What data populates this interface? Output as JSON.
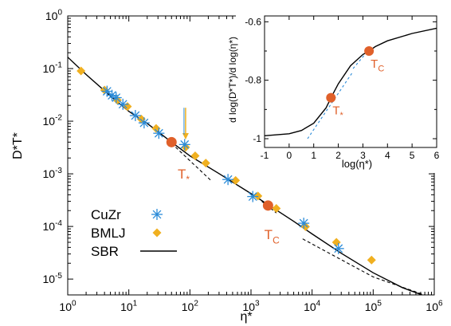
{
  "chart_data": [
    {
      "type": "scatter",
      "xscale": "log",
      "yscale": "log",
      "xlim": [
        1,
        1000000
      ],
      "ylim": [
        5e-06,
        1
      ],
      "xlabel": "η*",
      "ylabel": "D*T*",
      "x_ticks": [
        "10^0",
        "10^1",
        "10^2",
        "10^3",
        "10^4",
        "10^5",
        "10^6"
      ],
      "y_ticks": [
        "10^-5",
        "10^-4",
        "10^-3",
        "10^-2",
        "10^-1",
        "10^0"
      ],
      "legend_position": "bottom-left",
      "colors": {
        "CuZr": "#2b8bd8",
        "BMLJ": "#f0b020",
        "SBR": "#000000",
        "markers": "#e0602a",
        "arrow": "#f0b020"
      },
      "series": [
        {
          "name": "CuZr",
          "marker": "asterisk",
          "points": [
            [
              4.4,
              0.037
            ],
            [
              5.3,
              0.031
            ],
            [
              6.2,
              0.028
            ],
            [
              8.0,
              0.021
            ],
            [
              12.8,
              0.0128
            ],
            [
              17.8,
              0.0093
            ],
            [
              31,
              0.0059
            ],
            [
              82,
              0.0036
            ],
            [
              420,
              0.00078
            ],
            [
              1070,
              0.00037
            ],
            [
              7300,
              0.000115
            ],
            [
              27000,
              3.8e-05
            ]
          ]
        },
        {
          "name": "BMLJ",
          "marker": "diamond",
          "points": [
            [
              1.65,
              0.09
            ],
            [
              4.0,
              0.039
            ],
            [
              6.5,
              0.025
            ],
            [
              9.5,
              0.019
            ],
            [
              16,
              0.011
            ],
            [
              28,
              0.0073
            ],
            [
              85,
              0.0032
            ],
            [
              122,
              0.0022
            ],
            [
              182,
              0.0016
            ],
            [
              560,
              0.00075
            ],
            [
              1300,
              0.00038
            ],
            [
              2600,
              0.00022
            ],
            [
              7800,
              9.9e-05
            ],
            [
              25000,
              5e-05
            ],
            [
              94000,
              2.3e-05
            ]
          ]
        },
        {
          "name": "SBR",
          "line": "solid",
          "points": [
            [
              1,
              0.165
            ],
            [
              2,
              0.077
            ],
            [
              5,
              0.03
            ],
            [
              10,
              0.0154
            ],
            [
              20,
              0.0091
            ],
            [
              50,
              0.004
            ],
            [
              100,
              0.0022
            ],
            [
              300,
              0.00101
            ],
            [
              1000,
              0.00042
            ],
            [
              2000,
              0.00025
            ],
            [
              5000,
              0.000125
            ],
            [
              10000,
              7.2e-05
            ],
            [
              30000,
              3.1e-05
            ],
            [
              100000,
              1.32e-05
            ],
            [
              300000,
              6.9e-06
            ],
            [
              1000000,
              4.1e-06
            ]
          ]
        },
        {
          "name": "",
          "line": "dashed",
          "points": [
            [
              50,
              0.0038
            ],
            [
              110,
              0.0016
            ],
            [
              220,
              0.00075
            ]
          ]
        },
        {
          "name": "",
          "line": "dashed",
          "points": [
            [
              1500,
              0.0003
            ],
            [
              2600,
              0.00018
            ]
          ]
        },
        {
          "name": "",
          "line": "dashed",
          "points": [
            [
              7000,
              5.8e-05
            ],
            [
              100000,
              1.1e-05
            ],
            [
              1000000,
              4.3e-06
            ]
          ]
        }
      ],
      "annotations": [
        {
          "text": "T*",
          "at": [
            50,
            0.004
          ],
          "label_at": [
            63,
            0.00082
          ]
        },
        {
          "text": "Tc",
          "at": [
            1900,
            0.00025
          ],
          "label_at": [
            1650,
            5.7e-05
          ]
        },
        {
          "type": "arrow",
          "x": 85,
          "y_from": 0.018,
          "y_to": 0.0045
        }
      ]
    },
    {
      "type": "line",
      "xlim": [
        -1,
        6
      ],
      "ylim": [
        -1.03,
        -0.58
      ],
      "xlabel": "log(η*)",
      "ylabel": "d log(D*T*)/d log(η*)",
      "x_ticks": [
        "-1",
        "0",
        "1",
        "2",
        "3",
        "4",
        "5",
        "6"
      ],
      "y_ticks": [
        "-1",
        "-0.8",
        "-0.6"
      ],
      "series": [
        {
          "name": "",
          "line": "solid",
          "color": "#000000",
          "points": [
            [
              -1,
              -0.99
            ],
            [
              0,
              -0.983
            ],
            [
              0.5,
              -0.972
            ],
            [
              1.0,
              -0.947
            ],
            [
              1.5,
              -0.895
            ],
            [
              1.75,
              -0.852
            ],
            [
              2.0,
              -0.812
            ],
            [
              2.5,
              -0.75
            ],
            [
              3.0,
              -0.712
            ],
            [
              3.25,
              -0.7
            ],
            [
              3.5,
              -0.685
            ],
            [
              4,
              -0.665
            ],
            [
              5,
              -0.64
            ],
            [
              6,
              -0.622
            ]
          ]
        },
        {
          "name": "",
          "line": "dashed",
          "color": "#2b8bd8",
          "points": [
            [
              0.75,
              -1.0
            ],
            [
              2.6,
              -0.77
            ]
          ]
        },
        {
          "name": "",
          "line": "dashed",
          "color": "#2b8bd8",
          "points": [
            [
              2.6,
              -0.76
            ],
            [
              3.25,
              -0.695
            ]
          ]
        }
      ],
      "annotations": [
        {
          "text": "T*",
          "at": [
            1.7,
            -0.86
          ]
        },
        {
          "text": "Tc",
          "at": [
            3.25,
            -0.7
          ]
        }
      ]
    }
  ],
  "legend": [
    {
      "label": "CuZr"
    },
    {
      "label": "BMLJ"
    },
    {
      "label": "SBR"
    }
  ],
  "labels": {
    "ylabel_main": "D*T*",
    "xlabel_main": "η*",
    "inset_xlabel": "log(η*)",
    "inset_ylabel": "d log(D*T*)/d log(η*)",
    "t_star": "T",
    "t_star_sub": "*",
    "t_c": "T",
    "t_c_sub": "C"
  }
}
